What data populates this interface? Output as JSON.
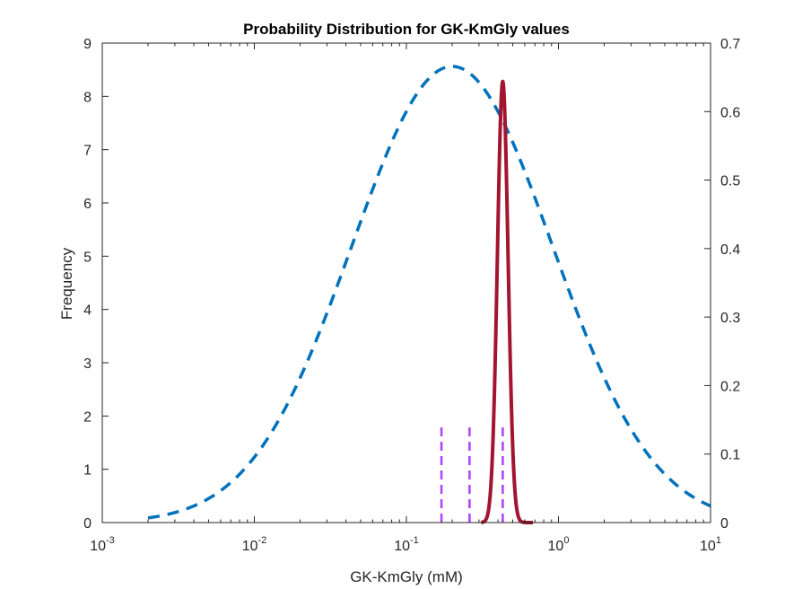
{
  "chart_data": {
    "type": "line",
    "title": "Probability Distribution for GK-KmGly values",
    "xlabel": "GK-KmGly (mM)",
    "ylabel": "Frequency",
    "x_scale": "log",
    "xlim": [
      0.001,
      10
    ],
    "ylim_left": [
      0,
      9
    ],
    "ylim_right": [
      0,
      0.7
    ],
    "grid": false,
    "x_ticks": [
      {
        "base": "10",
        "exp": "-3",
        "value": 0.001
      },
      {
        "base": "10",
        "exp": "-2",
        "value": 0.01
      },
      {
        "base": "10",
        "exp": "-1",
        "value": 0.1
      },
      {
        "base": "10",
        "exp": "0",
        "value": 1
      },
      {
        "base": "10",
        "exp": "1",
        "value": 10
      }
    ],
    "y_ticks_left": [
      "0",
      "1",
      "2",
      "3",
      "4",
      "5",
      "6",
      "7",
      "8",
      "9"
    ],
    "y_ticks_right": [
      "0",
      "0.1",
      "0.2",
      "0.3",
      "0.4",
      "0.5",
      "0.6",
      "0.7"
    ],
    "series": [
      {
        "style": "dashed",
        "axis": "right",
        "color": "#0072BD",
        "distribution": "lognormal",
        "peak_x": 0.2,
        "peak_y": 0.666,
        "sigma_log10": 0.66,
        "x_range": [
          0.002,
          10
        ]
      },
      {
        "style": "solid",
        "axis": "left",
        "color": "#A2142F",
        "distribution": "lognormal",
        "peak_x": 0.43,
        "peak_y": 8.28,
        "sigma_log10": 0.035,
        "x_range": [
          0.31,
          0.68
        ]
      }
    ],
    "vertical_lines": [
      {
        "x": 0.17,
        "y": 1.85,
        "color": "#B146FF",
        "style": "dashed"
      },
      {
        "x": 0.26,
        "y": 1.85,
        "color": "#B146FF",
        "style": "dashed"
      },
      {
        "x": 0.43,
        "y": 1.85,
        "color": "#B146FF",
        "style": "dashed"
      }
    ]
  }
}
